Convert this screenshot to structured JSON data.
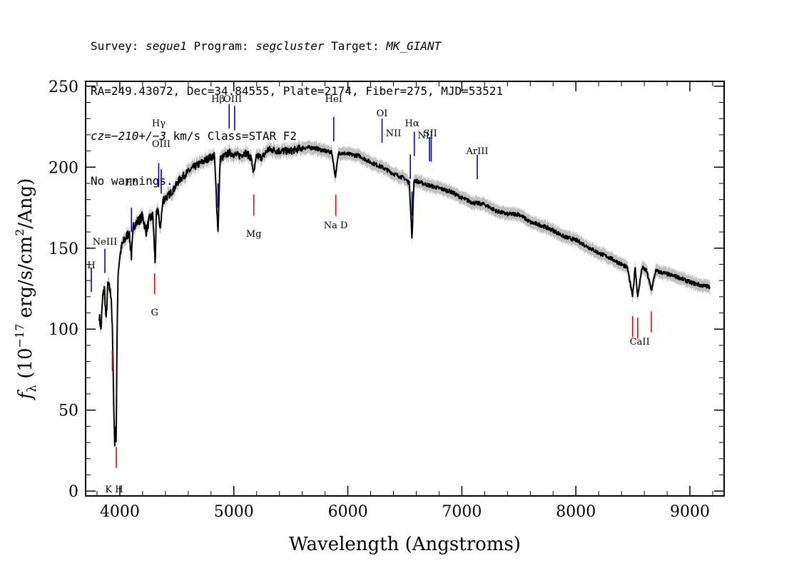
{
  "header": {
    "line1": {
      "survey_label": "Survey: ",
      "survey": "segue1",
      "program_label": " Program: ",
      "program": "segcluster",
      "target_label": " Target: ",
      "target": "MK_GIANT"
    },
    "line2": "RA=249.43072, Dec=34.84555, Plate=2174, Fiber=275, MJD=53521",
    "line3": {
      "cz": "cz=−210+/−3",
      "rest": " km/s Class=STAR F2"
    },
    "line4": "No warnings."
  },
  "chart_data": {
    "type": "line",
    "xlabel": "Wavelength (Angstroms)",
    "ylabel": "f_λ (10^-17 erg/s/cm^2/Ang)",
    "xlim": [
      3700,
      9300
    ],
    "ylim": [
      -3,
      253
    ],
    "xticks": [
      4000,
      5000,
      6000,
      7000,
      8000,
      9000
    ],
    "yticks": [
      0,
      50,
      100,
      150,
      200,
      250
    ],
    "colors": {
      "flux": "#000000",
      "error_band": "#c0c0c0",
      "emission": "#0000cc",
      "absorption": "#ff0000"
    },
    "series": [
      {
        "x": [
          3820,
          3835,
          3850,
          3865,
          3880,
          3895,
          3910,
          3925,
          3935,
          3945,
          3955,
          3960,
          3968,
          3975,
          3985,
          4000,
          4020,
          4050,
          4080,
          4102,
          4120,
          4150,
          4180,
          4200,
          4230,
          4260,
          4290,
          4310,
          4320,
          4340,
          4350,
          4380,
          4420,
          4470,
          4520,
          4580,
          4650,
          4720,
          4790,
          4830,
          4861,
          4880,
          4920,
          4960,
          5000,
          5050,
          5100,
          5150,
          5175,
          5200,
          5250,
          5300,
          5400,
          5500,
          5600,
          5700,
          5800,
          5860,
          5890,
          5920,
          6000,
          6100,
          6200,
          6300,
          6400,
          6500,
          6540,
          6563,
          6580,
          6620,
          6700,
          6800,
          6900,
          7000,
          7100,
          7200,
          7300,
          7400,
          7500,
          7600,
          7700,
          7800,
          7900,
          8000,
          8100,
          8200,
          8300,
          8400,
          8450,
          8498,
          8520,
          8542,
          8580,
          8620,
          8662,
          8700,
          8800,
          8900,
          9000,
          9100,
          9180
        ],
        "y": [
          108,
          100,
          120,
          125,
          105,
          128,
          125,
          120,
          98,
          60,
          28,
          42,
          32,
          90,
          135,
          145,
          152,
          156,
          160,
          145,
          164,
          166,
          168,
          170,
          160,
          168,
          170,
          140,
          170,
          174,
          160,
          180,
          182,
          186,
          192,
          196,
          200,
          203,
          206,
          207,
          160,
          205,
          207,
          209,
          208,
          207,
          209,
          206,
          196,
          207,
          206,
          211,
          210,
          210,
          212,
          212,
          210,
          209,
          194,
          209,
          208,
          207,
          203,
          200,
          196,
          193,
          190,
          155,
          192,
          191,
          189,
          187,
          185,
          181,
          178,
          177,
          173,
          171,
          171,
          166,
          164,
          161,
          157,
          155,
          151,
          147,
          144,
          140,
          138,
          121,
          138,
          120,
          138,
          136,
          124,
          136,
          134,
          132,
          129,
          127,
          126
        ]
      }
    ],
    "lines": [
      {
        "name": "H",
        "wave": 3750,
        "type": "emission"
      },
      {
        "name": "NeIII",
        "wave": 3869,
        "type": "emission"
      },
      {
        "name": "Hδ",
        "wave": 4102,
        "type": "emission"
      },
      {
        "name": "Hγ",
        "wave": 4341,
        "type": "emission"
      },
      {
        "name": "OIII",
        "wave": 4363,
        "type": "emission"
      },
      {
        "name": "Hβ",
        "wave": 4861,
        "type": "emission"
      },
      {
        "name": "OIII",
        "wave": 4959,
        "type": "emission"
      },
      {
        "name": "OIII",
        "wave": 5007,
        "type": "emission"
      },
      {
        "name": "HeI",
        "wave": 5876,
        "type": "emission"
      },
      {
        "name": "OI",
        "wave": 6300,
        "type": "emission"
      },
      {
        "name": "NII",
        "wave": 6548,
        "type": "emission"
      },
      {
        "name": "Hα",
        "wave": 6563,
        "type": "emission"
      },
      {
        "name": "NII",
        "wave": 6583,
        "type": "emission"
      },
      {
        "name": "SII",
        "wave": 6716,
        "type": "emission"
      },
      {
        "name": "SII",
        "wave": 6731,
        "type": "emission"
      },
      {
        "name": "ArIII",
        "wave": 7135,
        "type": "emission"
      },
      {
        "name": "K",
        "wave": 3934,
        "type": "absorption"
      },
      {
        "name": "H",
        "wave": 3969,
        "type": "absorption"
      },
      {
        "name": "G",
        "wave": 4305,
        "type": "absorption"
      },
      {
        "name": "Mg",
        "wave": 5175,
        "type": "absorption"
      },
      {
        "name": "Na D",
        "wave": 5894,
        "type": "absorption"
      },
      {
        "name": "CaII",
        "wave": 8498,
        "type": "absorption"
      },
      {
        "name": "CaII",
        "wave": 8542,
        "type": "absorption"
      },
      {
        "name": "CaII",
        "wave": 8662,
        "type": "absorption"
      }
    ],
    "line_labels": [
      {
        "text": "H",
        "wave": 3750,
        "kind": "emission",
        "row": 1
      },
      {
        "text": "NeIII",
        "wave": 3869,
        "kind": "emission",
        "row": 2
      },
      {
        "text": "Hδ",
        "wave": 4102,
        "kind": "emission",
        "row": 3
      },
      {
        "text": "Hγ",
        "wave": 4341,
        "kind": "emission",
        "row": 4
      },
      {
        "text": "OIII",
        "wave": 4363,
        "kind": "emission",
        "row": 5
      },
      {
        "text": "Hβ",
        "wave": 4861,
        "kind": "emission",
        "row": 6
      },
      {
        "text": "OIII",
        "wave": 4990,
        "kind": "emission",
        "row": 6
      },
      {
        "text": "HeI",
        "wave": 5876,
        "kind": "emission",
        "row": 6
      },
      {
        "text": "OI",
        "wave": 6300,
        "kind": "emission",
        "row": 7
      },
      {
        "text": "NII",
        "wave": 6400,
        "kind": "emission",
        "row": 8
      },
      {
        "text": "Hα",
        "wave": 6563,
        "kind": "emission",
        "row": 4
      },
      {
        "text": "NII",
        "wave": 6680,
        "kind": "emission",
        "row": 9
      },
      {
        "text": "SII",
        "wave": 6723,
        "kind": "emission",
        "row": 8
      },
      {
        "text": "ArIII",
        "wave": 7135,
        "kind": "emission",
        "row": 10
      },
      {
        "text": "K H",
        "wave": 3950,
        "kind": "absorption",
        "row": 1
      },
      {
        "text": "G",
        "wave": 4305,
        "kind": "absorption",
        "row": 2
      },
      {
        "text": "Mg",
        "wave": 5175,
        "kind": "absorption",
        "row": 3
      },
      {
        "text": "Na  D",
        "wave": 5894,
        "kind": "absorption",
        "row": 4
      },
      {
        "text": "CaII",
        "wave": 8560,
        "kind": "absorption",
        "row": 5
      }
    ]
  }
}
